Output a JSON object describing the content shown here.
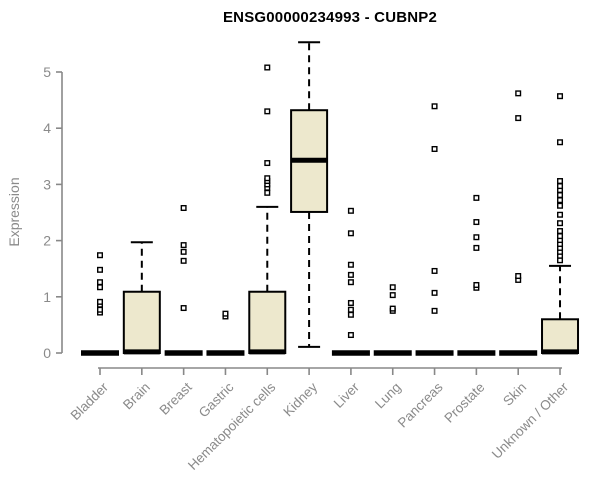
{
  "chart_data": {
    "type": "boxplot",
    "title": "ENSG00000234993 - CUBNP2",
    "ylabel": "Expression",
    "xlabel": "",
    "ylim": [
      0,
      5
    ],
    "yticks": [
      0,
      1,
      2,
      3,
      4,
      5
    ],
    "grid": false,
    "legend": "none",
    "categories": [
      "Bladder",
      "Brain",
      "Breast",
      "Gastric",
      "Hematopoietic cells",
      "Kidney",
      "Liver",
      "Lung",
      "Pancreas",
      "Prostate",
      "Skin",
      "Unknown / Other"
    ],
    "series": [
      {
        "category": "Bladder",
        "whisker_low": 0,
        "q1": 0,
        "median": 0,
        "q3": 0,
        "whisker_high": 0,
        "outliers": [
          0.72,
          0.77,
          0.86,
          0.91,
          1.17,
          1.26,
          1.48,
          1.74
        ]
      },
      {
        "category": "Brain",
        "whisker_low": 0,
        "q1": 0,
        "median": 0.02,
        "q3": 1.09,
        "whisker_high": 1.97,
        "outliers": []
      },
      {
        "category": "Breast",
        "whisker_low": 0,
        "q1": 0,
        "median": 0,
        "q3": 0,
        "whisker_high": 0,
        "outliers": [
          0.8,
          1.64,
          1.8,
          1.92,
          2.58
        ]
      },
      {
        "category": "Gastric",
        "whisker_low": 0,
        "q1": 0,
        "median": 0,
        "q3": 0,
        "whisker_high": 0,
        "outliers": [
          0.65,
          0.7
        ]
      },
      {
        "category": "Hematopoietic cells",
        "whisker_low": 0,
        "q1": 0,
        "median": 0.02,
        "q3": 1.09,
        "whisker_high": 2.6,
        "outliers": [
          2.85,
          2.94,
          3.0,
          3.06,
          3.11,
          3.38,
          4.3,
          5.08
        ]
      },
      {
        "category": "Kidney",
        "whisker_low": 0.11,
        "q1": 2.51,
        "median": 3.43,
        "q3": 4.32,
        "whisker_high": 5.53,
        "outliers": []
      },
      {
        "category": "Liver",
        "whisker_low": 0,
        "q1": 0,
        "median": 0,
        "q3": 0,
        "whisker_high": 0,
        "outliers": [
          0.32,
          0.68,
          0.77,
          0.89,
          1.26,
          1.39,
          1.57,
          2.13,
          2.53
        ]
      },
      {
        "category": "Lung",
        "whisker_low": 0,
        "q1": 0,
        "median": 0,
        "q3": 0,
        "whisker_high": 0,
        "outliers": [
          0.75,
          0.79,
          1.03,
          1.17
        ]
      },
      {
        "category": "Pancreas",
        "whisker_low": 0,
        "q1": 0,
        "median": 0,
        "q3": 0,
        "whisker_high": 0,
        "outliers": [
          0.75,
          1.07,
          1.46,
          3.63,
          4.39
        ]
      },
      {
        "category": "Prostate",
        "whisker_low": 0,
        "q1": 0,
        "median": 0,
        "q3": 0,
        "whisker_high": 0,
        "outliers": [
          1.16,
          1.21,
          1.87,
          2.06,
          2.33,
          2.76
        ]
      },
      {
        "category": "Skin",
        "whisker_low": 0,
        "q1": 0,
        "median": 0,
        "q3": 0,
        "whisker_high": 0,
        "outliers": [
          1.3,
          1.37,
          4.18,
          4.62
        ]
      },
      {
        "category": "Unknown / Other",
        "whisker_low": 0,
        "q1": 0,
        "median": 0.02,
        "q3": 0.6,
        "whisker_high": 1.55,
        "outliers": [
          1.65,
          1.73,
          1.8,
          1.87,
          1.94,
          2.01,
          2.08,
          2.17,
          2.31,
          2.46,
          2.62,
          2.72,
          2.81,
          2.9,
          2.97,
          3.06,
          3.75,
          4.57
        ]
      }
    ],
    "colors": {
      "box_fill": "#ede8cd",
      "box_stroke": "#000000",
      "median": "#000000",
      "outlier_stroke": "#000000",
      "outlier_fill": "#ffffff",
      "axis": "#888888",
      "tick_text": "#8a8a8a",
      "title_text": "#000000",
      "background": "#ffffff"
    }
  }
}
